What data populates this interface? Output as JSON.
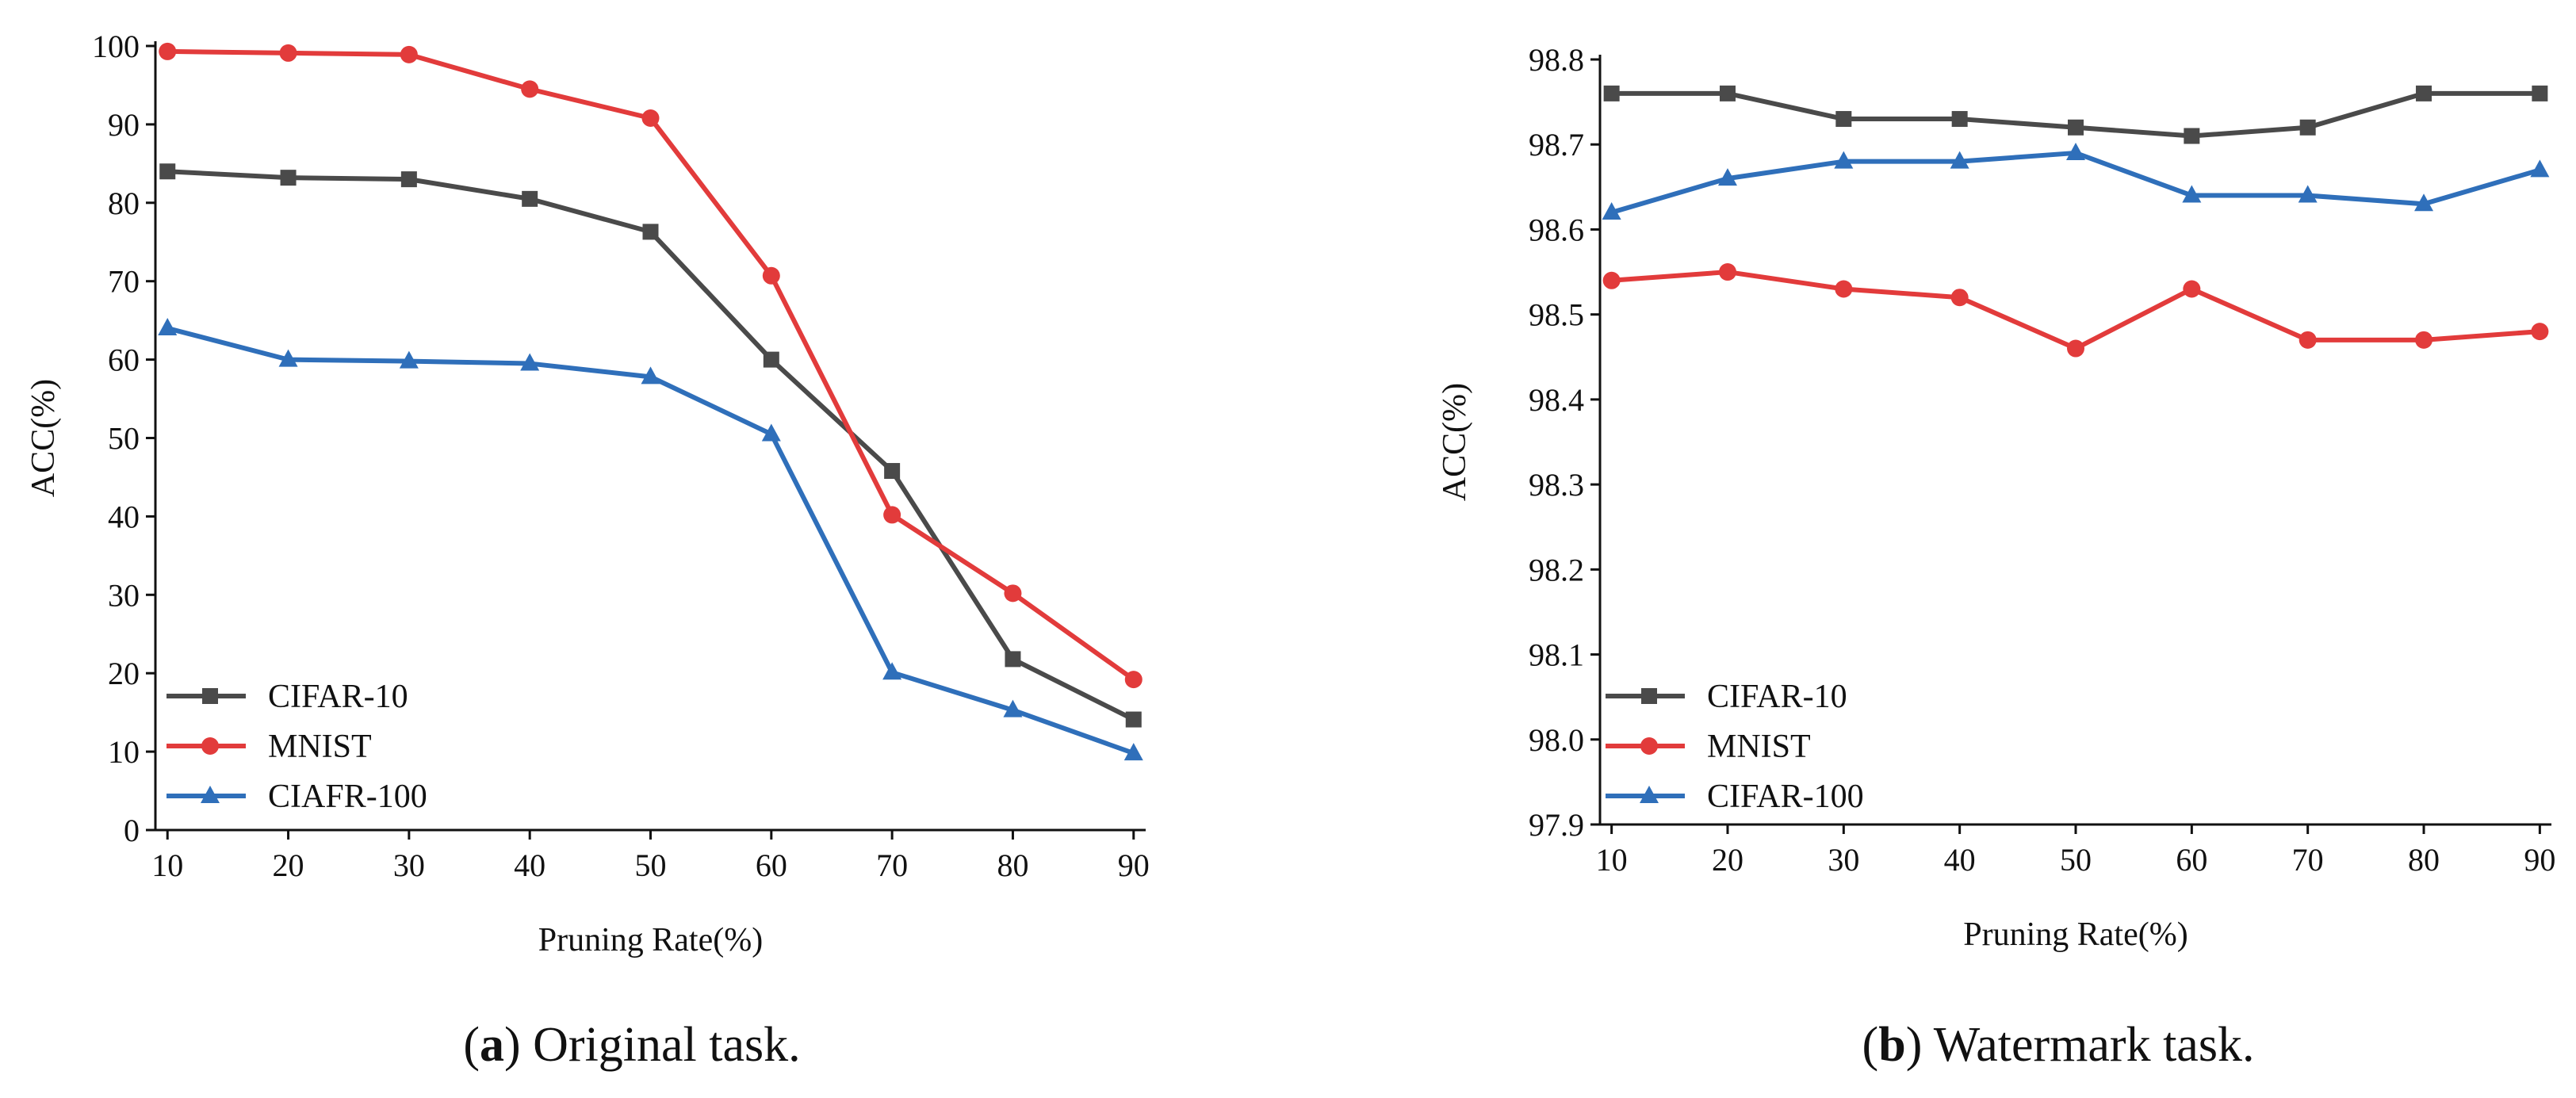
{
  "charts": [
    {
      "id": "a",
      "caption": {
        "letter": "a",
        "open": "(",
        "close": ")",
        "text": " Original task."
      },
      "chart_data": {
        "type": "line",
        "title": "",
        "xlabel": "Pruning Rate(%)",
        "ylabel": "ACC(%)",
        "x": [
          10,
          20,
          30,
          40,
          50,
          60,
          70,
          80,
          90
        ],
        "xlim": [
          9,
          91
        ],
        "ylim": [
          0,
          100
        ],
        "xticks": [
          "10",
          "20",
          "30",
          "40",
          "50",
          "60",
          "70",
          "80",
          "90"
        ],
        "yticks": [
          "0",
          "10",
          "20",
          "30",
          "40",
          "50",
          "60",
          "70",
          "80",
          "90",
          "100"
        ],
        "grid": false,
        "legend_position": "bottom-left",
        "series": [
          {
            "name": "CIFAR-10",
            "color": "#4a4a4a",
            "marker": "square",
            "values": [
              84.0,
              83.2,
              83.0,
              80.5,
              76.3,
              60.0,
              45.8,
              21.8,
              14.1
            ]
          },
          {
            "name": "MNIST",
            "color": "#e23b3b",
            "marker": "circle",
            "values": [
              99.3,
              99.1,
              98.9,
              94.5,
              90.8,
              70.7,
              40.2,
              30.2,
              19.2
            ]
          },
          {
            "name": "CIAFR-100",
            "color": "#2f6fba",
            "marker": "triangle",
            "values": [
              64.0,
              60.0,
              59.8,
              59.5,
              57.8,
              50.5,
              20.1,
              15.3,
              9.8
            ]
          }
        ]
      }
    },
    {
      "id": "b",
      "caption": {
        "letter": "b",
        "open": "(",
        "close": ")",
        "text": " Watermark task."
      },
      "chart_data": {
        "type": "line",
        "title": "",
        "xlabel": "Pruning Rate(%)",
        "ylabel": "ACC(%)",
        "x": [
          10,
          20,
          30,
          40,
          50,
          60,
          70,
          80,
          90
        ],
        "xlim": [
          9,
          91
        ],
        "ylim": [
          97.9,
          98.8
        ],
        "xticks": [
          "10",
          "20",
          "30",
          "40",
          "50",
          "60",
          "70",
          "80",
          "90"
        ],
        "yticks": [
          "97.9",
          "98.0",
          "98.1",
          "98.2",
          "98.3",
          "98.4",
          "98.5",
          "98.6",
          "98.7",
          "98.8"
        ],
        "grid": false,
        "legend_position": "bottom-left",
        "series": [
          {
            "name": "CIFAR-10",
            "color": "#4a4a4a",
            "marker": "square",
            "values": [
              98.76,
              98.76,
              98.73,
              98.73,
              98.72,
              98.71,
              98.72,
              98.76,
              98.76
            ]
          },
          {
            "name": "MNIST",
            "color": "#e23b3b",
            "marker": "circle",
            "values": [
              98.54,
              98.55,
              98.53,
              98.52,
              98.46,
              98.53,
              98.47,
              98.47,
              98.48
            ]
          },
          {
            "name": "CIFAR-100",
            "color": "#2f6fba",
            "marker": "triangle",
            "values": [
              98.62,
              98.66,
              98.68,
              98.68,
              98.69,
              98.64,
              98.64,
              98.63,
              98.67
            ]
          }
        ]
      }
    }
  ]
}
